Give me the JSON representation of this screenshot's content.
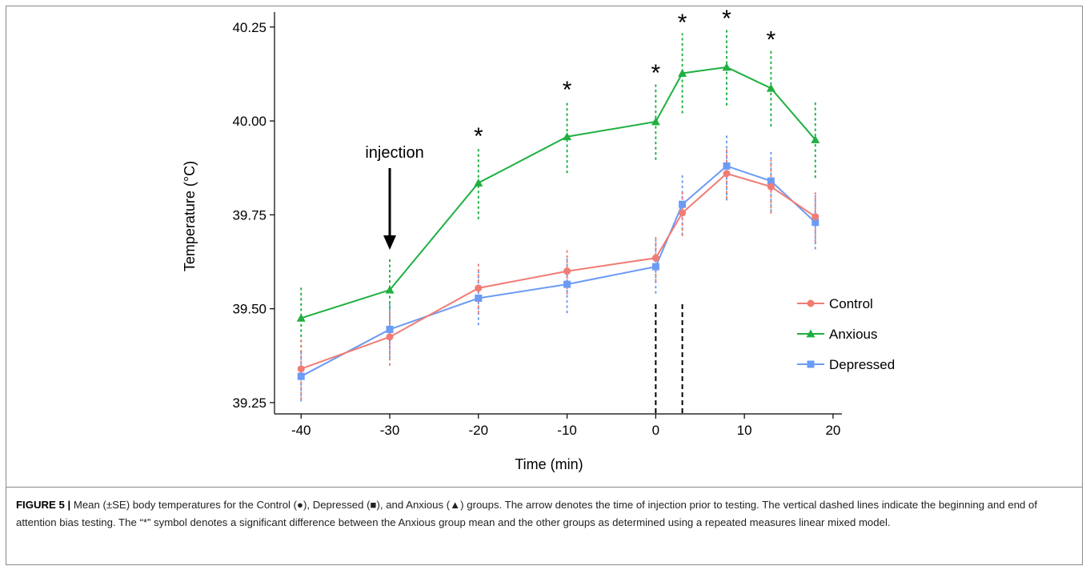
{
  "chart_data": {
    "type": "line",
    "xlabel": "Time (min)",
    "ylabel": "Temperature (°C)",
    "xlim": [
      -43,
      21
    ],
    "ylim": [
      39.22,
      40.29
    ],
    "x_ticks": [
      -40,
      -30,
      -20,
      -10,
      0,
      10,
      20
    ],
    "x_tick_labels": [
      "-40",
      "-30",
      "-20",
      "-10",
      "0",
      "10",
      "20"
    ],
    "y_ticks": [
      39.25,
      39.5,
      39.75,
      40.0,
      40.25
    ],
    "y_tick_labels": [
      "39.25",
      "39.50",
      "39.75",
      "40.00",
      "40.25"
    ],
    "grid": false,
    "legend_position": "right",
    "x": [
      -40,
      -30,
      -20,
      -10,
      0,
      3,
      8,
      13,
      18
    ],
    "series": [
      {
        "name": "Control",
        "marker": "circle",
        "color": "#f07c74",
        "values": [
          39.34,
          39.425,
          39.555,
          39.6,
          39.635,
          39.755,
          39.86,
          39.825,
          39.745
        ],
        "se": [
          0.08,
          0.075,
          0.065,
          0.06,
          0.06,
          0.06,
          0.065,
          0.07,
          0.065
        ]
      },
      {
        "name": "Anxious",
        "marker": "triangle",
        "color": "#1fb040",
        "values": [
          39.475,
          39.55,
          39.835,
          39.958,
          39.998,
          40.127,
          40.143,
          40.087,
          39.95
        ],
        "se": [
          0.09,
          0.09,
          0.095,
          0.095,
          0.1,
          0.105,
          0.1,
          0.1,
          0.1
        ]
      },
      {
        "name": "Depressed",
        "marker": "square",
        "color": "#6b9bf5",
        "values": [
          39.32,
          39.445,
          39.528,
          39.565,
          39.612,
          39.778,
          39.88,
          39.84,
          39.73
        ],
        "se": [
          0.065,
          0.075,
          0.07,
          0.075,
          0.07,
          0.08,
          0.09,
          0.08,
          0.07
        ]
      }
    ],
    "annotations": {
      "injection_label": "injection",
      "injection_x": -30,
      "testing_lines_x": [
        0,
        3
      ],
      "significance_symbol": "*",
      "significance_x": [
        -20,
        -10,
        0,
        3,
        8,
        13
      ]
    }
  },
  "caption": {
    "label": "FIGURE 5 |",
    "text": " Mean (±SE) body temperatures for the Control (●), Depressed (■), and Anxious (▲) groups. The arrow denotes the time of injection prior to testing. The vertical dashed lines indicate the beginning and end of attention bias testing. The “*” symbol denotes a significant difference between the Anxious group mean and the other groups as determined using a repeated measures linear mixed model."
  }
}
